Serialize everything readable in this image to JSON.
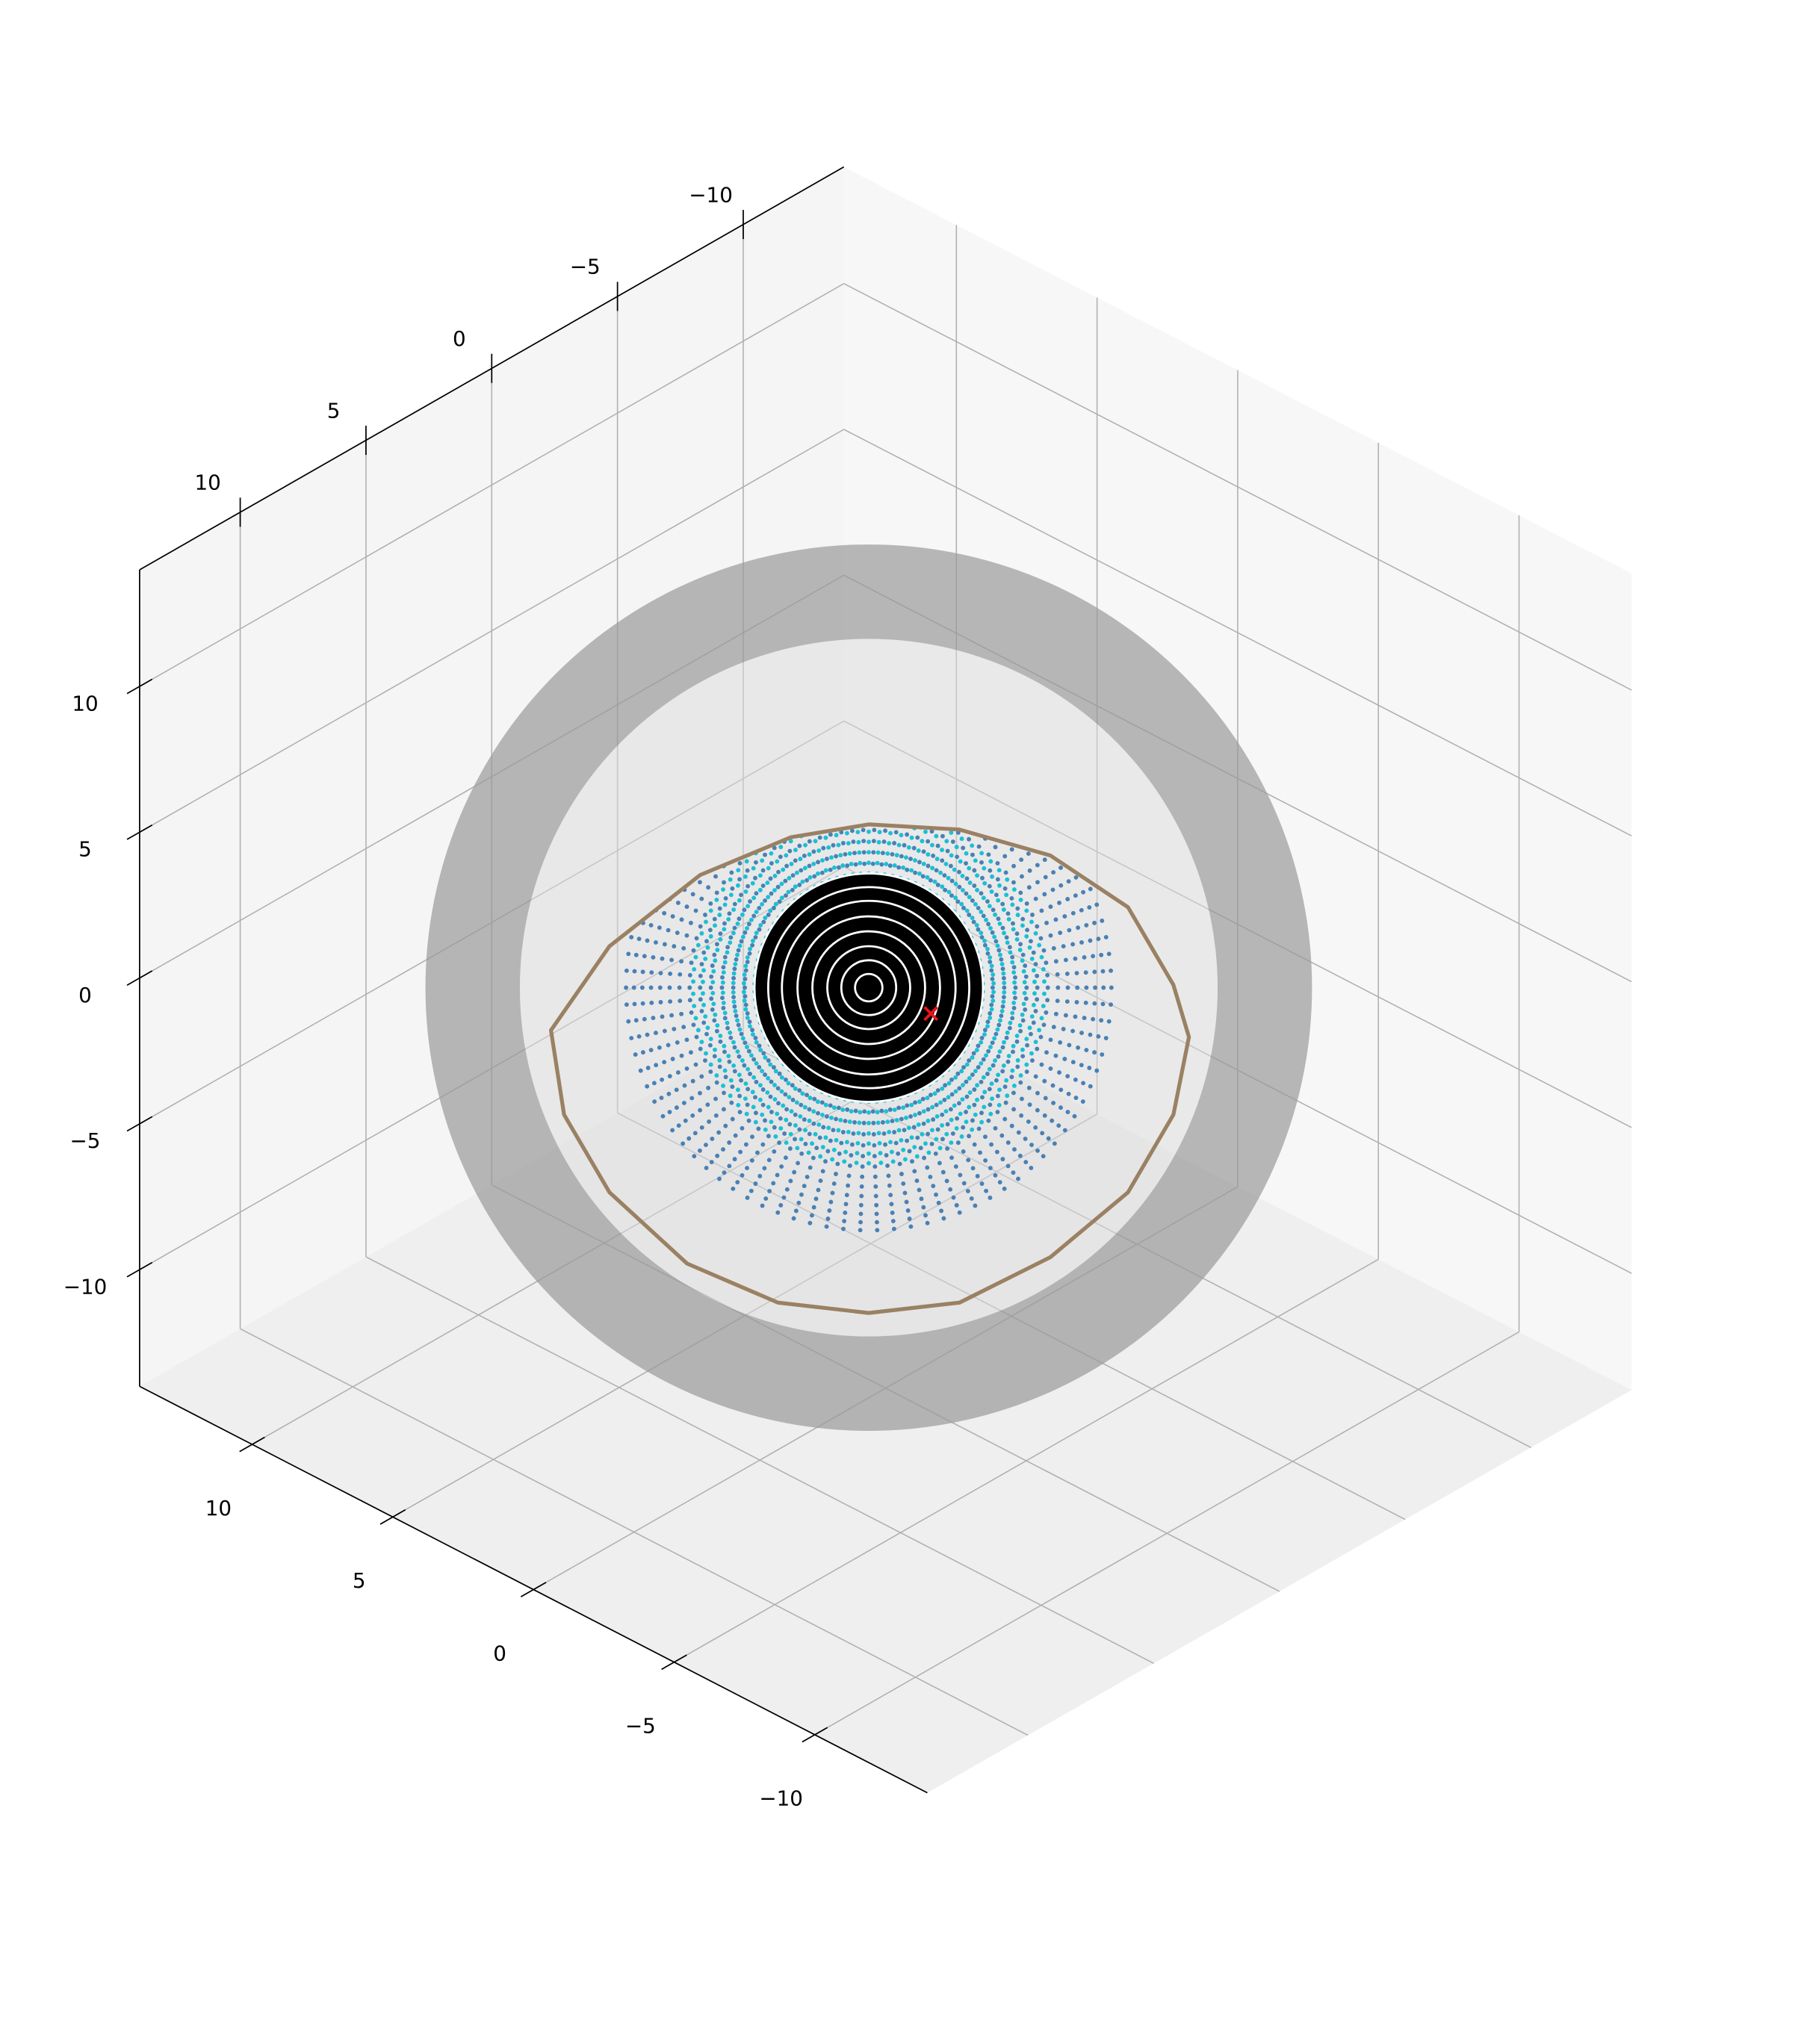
{
  "chart_data": {
    "type": "scatter3d",
    "xlim": [
      -14,
      14
    ],
    "ylim": [
      -14,
      14
    ],
    "zlim": [
      -14,
      14
    ],
    "xticks": [
      {
        "value": -10,
        "label": "−10"
      },
      {
        "value": -5,
        "label": "−5"
      },
      0,
      5,
      10
    ],
    "yticks": [
      {
        "value": -10,
        "label": "−10"
      },
      {
        "value": -5,
        "label": "−5"
      },
      0,
      5,
      10
    ],
    "zticks": [
      {
        "value": -10,
        "label": "−10"
      },
      {
        "value": -5,
        "label": "−5"
      },
      0,
      5,
      10
    ],
    "grid": true,
    "surfaces": [
      {
        "color": "#9a9a9a",
        "radius": 14.55,
        "inner_radius": 11.45,
        "inner_color": "#dcdcdc"
      }
    ],
    "point_clouds": [
      {
        "color": "#4a80b4",
        "radius": 10,
        "cap_angle": 54
      },
      {
        "color": "#19c1d4",
        "radius": 10,
        "cap_angle": 37
      },
      {
        "color": "#000000",
        "radius": 10,
        "cap_angle": 22
      }
    ],
    "rings": {
      "color": "#ffffff",
      "radii": [
        0.45,
        0.9,
        1.36,
        1.85,
        2.34,
        2.85,
        3.3,
        3.75
      ]
    },
    "eyelid": {
      "color": "#9a8163",
      "x": [
        -10.43,
        -8.51,
        -5.53,
        -2.55,
        0,
        2.98,
        5.96,
        8.51,
        10.0,
        10.51,
        10.0,
        8.51,
        5.96,
        2.98,
        0,
        -2.98,
        -5.96,
        -8.51,
        -10.0
      ],
      "y": [
        -1.4,
        1.36,
        3.7,
        4.94,
        5.36,
        5.19,
        4.34,
        2.64,
        0.09,
        -1.62,
        -4.17,
        -6.72,
        -8.85,
        -10.34,
        -10.68,
        -10.34,
        -9.06,
        -6.72,
        -4.17
      ]
    },
    "marker": {
      "color": "#e8141c",
      "x": 2.04,
      "y": -0.85
    }
  }
}
